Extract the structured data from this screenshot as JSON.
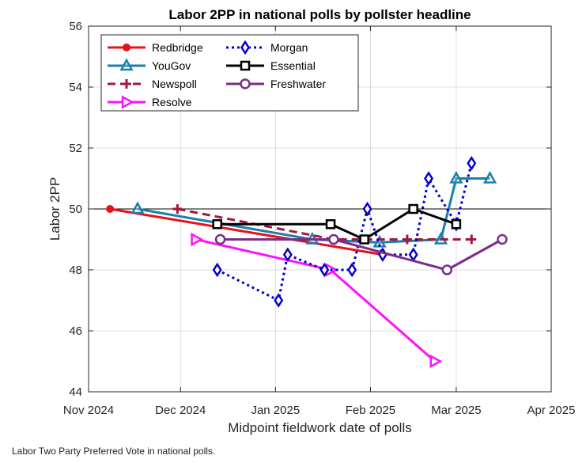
{
  "chart_data": {
    "type": "line",
    "title": "Labor 2PP in national polls by pollster headline",
    "xlabel": "Midpoint fieldwork date of polls",
    "ylabel": "Labor 2PP",
    "x_ticks": [
      {
        "date": "2024-11-01",
        "label": "Nov 2024"
      },
      {
        "date": "2024-12-01",
        "label": "Dec 2024"
      },
      {
        "date": "2025-01-01",
        "label": "Jan 2025"
      },
      {
        "date": "2025-02-01",
        "label": "Feb 2025"
      },
      {
        "date": "2025-03-01",
        "label": "Mar 2025"
      },
      {
        "date": "2025-04-01",
        "label": "Apr 2025"
      }
    ],
    "xlim": [
      "2024-11-01",
      "2025-04-01"
    ],
    "ylim": [
      44,
      56
    ],
    "y_ticks": [
      44,
      46,
      48,
      50,
      52,
      54,
      56
    ],
    "reference_line": 50,
    "grid": true,
    "legend_position": "top-left",
    "series": [
      {
        "name": "Redbridge",
        "color": "#e8101a",
        "dash": "solid",
        "marker": "circle-filled",
        "points": [
          [
            "2024-11-08",
            50.0
          ],
          [
            "2025-02-05",
            48.5
          ]
        ]
      },
      {
        "name": "YouGov",
        "color": "#1a80aa",
        "dash": "solid",
        "marker": "triangle-up",
        "points": [
          [
            "2024-11-17",
            50.0
          ],
          [
            "2025-01-13",
            49.0
          ],
          [
            "2025-02-04",
            48.9
          ],
          [
            "2025-02-24",
            49.0
          ],
          [
            "2025-03-01",
            51.0
          ],
          [
            "2025-03-12",
            51.0
          ]
        ]
      },
      {
        "name": "Newspoll",
        "color": "#a2183f",
        "dash": "dashed",
        "marker": "plus",
        "points": [
          [
            "2024-11-30",
            50.0
          ],
          [
            "2025-01-20",
            49.0
          ],
          [
            "2025-02-13",
            49.0
          ],
          [
            "2025-03-06",
            49.0
          ]
        ]
      },
      {
        "name": "Resolve",
        "color": "#ff10ff",
        "dash": "solid",
        "marker": "triangle-right",
        "points": [
          [
            "2024-12-06",
            49.0
          ],
          [
            "2025-01-19",
            48.0
          ],
          [
            "2025-02-22",
            45.0
          ]
        ]
      },
      {
        "name": "Morgan",
        "color": "#0000cc",
        "dash": "dotted",
        "marker": "diamond",
        "points": [
          [
            "2024-12-13",
            48.0
          ],
          [
            "2025-01-02",
            47.0
          ],
          [
            "2025-01-05",
            48.5
          ],
          [
            "2025-01-17",
            48.0
          ],
          [
            "2025-01-26",
            48.0
          ],
          [
            "2025-01-31",
            50.0
          ],
          [
            "2025-02-05",
            48.5
          ],
          [
            "2025-02-15",
            48.5
          ],
          [
            "2025-02-20",
            51.0
          ],
          [
            "2025-02-29",
            49.5
          ],
          [
            "2025-03-06",
            51.5
          ]
        ]
      },
      {
        "name": "Essential",
        "color": "#000000",
        "dash": "solid",
        "marker": "square",
        "points": [
          [
            "2024-12-13",
            49.5
          ],
          [
            "2025-01-19",
            49.5
          ],
          [
            "2025-01-30",
            49.0
          ],
          [
            "2025-02-15",
            50.0
          ],
          [
            "2025-02-29",
            49.5
          ]
        ]
      },
      {
        "name": "Freshwater",
        "color": "#7a2d8a",
        "dash": "solid",
        "marker": "circle",
        "points": [
          [
            "2024-12-14",
            49.0
          ],
          [
            "2025-01-20",
            49.0
          ],
          [
            "2025-02-26",
            48.0
          ],
          [
            "2025-03-16",
            49.0
          ]
        ]
      }
    ]
  },
  "caption": "Labor Two Party Preferred Vote in national polls."
}
